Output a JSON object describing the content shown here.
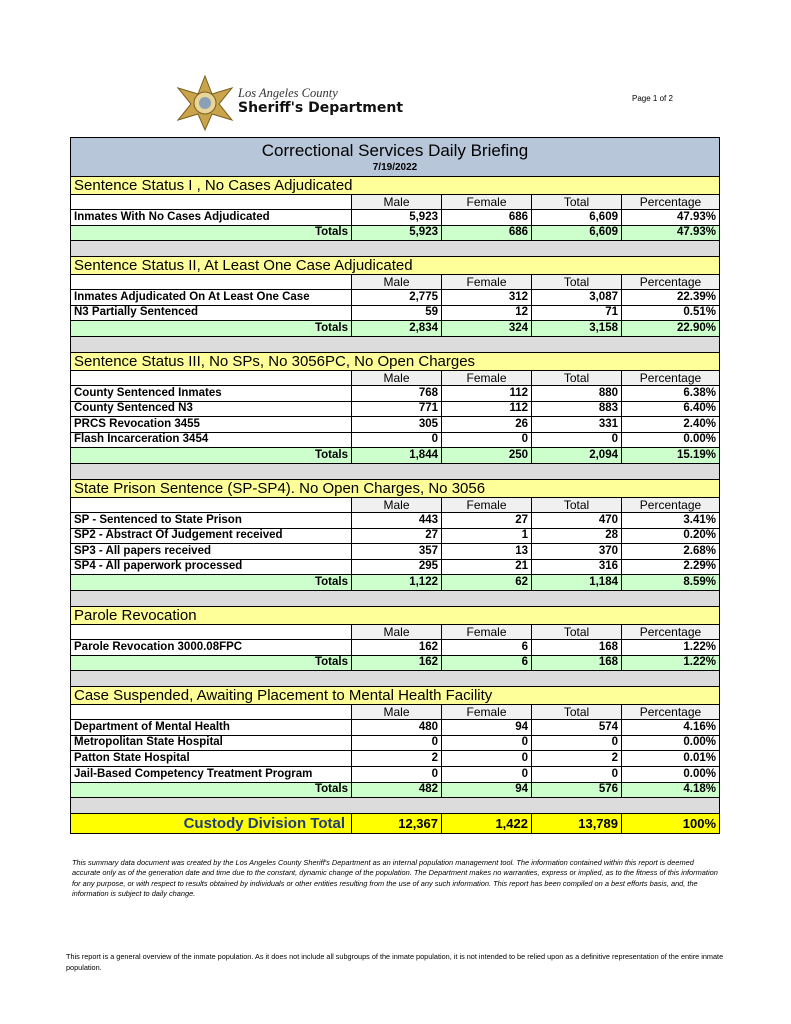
{
  "header": {
    "org_line1": "Los Angeles County",
    "org_line2": "Sheriff's Department",
    "page": "Page 1 of 2"
  },
  "title": "Correctional Services Daily Briefing",
  "date": "7/19/2022",
  "sections": [
    {
      "title": "Sentence Status I , No Cases Adjudicated",
      "columns": [
        "Male",
        "Female",
        "Total",
        "Percentage"
      ],
      "rows": [
        [
          "Inmates With No Cases Adjudicated",
          "5,923",
          "686",
          "6,609",
          "47.93%"
        ]
      ],
      "totals": [
        "Totals",
        "5,923",
        "686",
        "6,609",
        "47.93%"
      ]
    },
    {
      "title": "Sentence Status II, At Least One Case Adjudicated",
      "columns": [
        "Male",
        "Female",
        "Total",
        "Percentage"
      ],
      "rows": [
        [
          "Inmates Adjudicated On At Least One Case",
          "2,775",
          "312",
          "3,087",
          "22.39%"
        ],
        [
          "N3 Partially Sentenced",
          "59",
          "12",
          "71",
          "0.51%"
        ]
      ],
      "totals": [
        "Totals",
        "2,834",
        "324",
        "3,158",
        "22.90%"
      ]
    },
    {
      "title": "Sentence Status III, No SPs, No 3056PC, No Open Charges",
      "columns": [
        "Male",
        "Female",
        "Total",
        "Percentage"
      ],
      "rows": [
        [
          "County Sentenced Inmates",
          "768",
          "112",
          "880",
          "6.38%"
        ],
        [
          "County Sentenced N3",
          "771",
          "112",
          "883",
          "6.40%"
        ],
        [
          "PRCS Revocation 3455",
          "305",
          "26",
          "331",
          "2.40%"
        ],
        [
          "Flash Incarceration 3454",
          "0",
          "0",
          "0",
          "0.00%"
        ]
      ],
      "totals": [
        "Totals",
        "1,844",
        "250",
        "2,094",
        "15.19%"
      ]
    },
    {
      "title": "State Prison Sentence (SP-SP4). No Open Charges, No 3056",
      "columns": [
        "Male",
        "Female",
        "Total",
        "Percentage"
      ],
      "rows": [
        [
          "SP - Sentenced to State Prison",
          "443",
          "27",
          "470",
          "3.41%"
        ],
        [
          "SP2 - Abstract Of Judgement received",
          "27",
          "1",
          "28",
          "0.20%"
        ],
        [
          "SP3 - All papers received",
          "357",
          "13",
          "370",
          "2.68%"
        ],
        [
          "SP4 - All paperwork processed",
          "295",
          "21",
          "316",
          "2.29%"
        ]
      ],
      "totals": [
        "Totals",
        "1,122",
        "62",
        "1,184",
        "8.59%"
      ]
    },
    {
      "title": "Parole Revocation",
      "columns": [
        "Male",
        "Female",
        "Total",
        "Percentage"
      ],
      "rows": [
        [
          "Parole Revocation 3000.08FPC",
          "162",
          "6",
          "168",
          "1.22%"
        ]
      ],
      "totals": [
        "Totals",
        "162",
        "6",
        "168",
        "1.22%"
      ]
    },
    {
      "title": "Case Suspended, Awaiting Placement to Mental Health Facility",
      "columns": [
        "Male",
        "Female",
        "Total",
        "Percentage"
      ],
      "rows": [
        [
          "Department of Mental Health",
          "480",
          "94",
          "574",
          "4.16%"
        ],
        [
          "Metropolitan State Hospital",
          "0",
          "0",
          "0",
          "0.00%"
        ],
        [
          "Patton State Hospital",
          "2",
          "0",
          "2",
          "0.01%"
        ],
        [
          "Jail-Based Competency Treatment Program",
          "0",
          "0",
          "0",
          "0.00%"
        ]
      ],
      "totals": [
        "Totals",
        "482",
        "94",
        "576",
        "4.18%"
      ]
    }
  ],
  "grand_total": [
    "Custody Division Total",
    "12,367",
    "1,422",
    "13,789",
    "100%"
  ],
  "disclaimer": "This summary data document was created by the Los Angeles County Sheriff's Department as an internal population management tool.  The information contained within this report is deemed accurate only as of the generation date and time due to the constant, dynamic change of the population.  The Department makes no warranties, express or implied, as to the fitness of this information for any purpose, or with respect to results obtained by individuals or other entities resulting from the use of any such information.  This report has been compiled on a best efforts basis, and, the information is subject to daily change.",
  "footnote": "This report is a general overview of the inmate population.  As it does not include all subgroups of the inmate population, it is not intended to be relied upon as a definitive representation of the entire inmate population."
}
